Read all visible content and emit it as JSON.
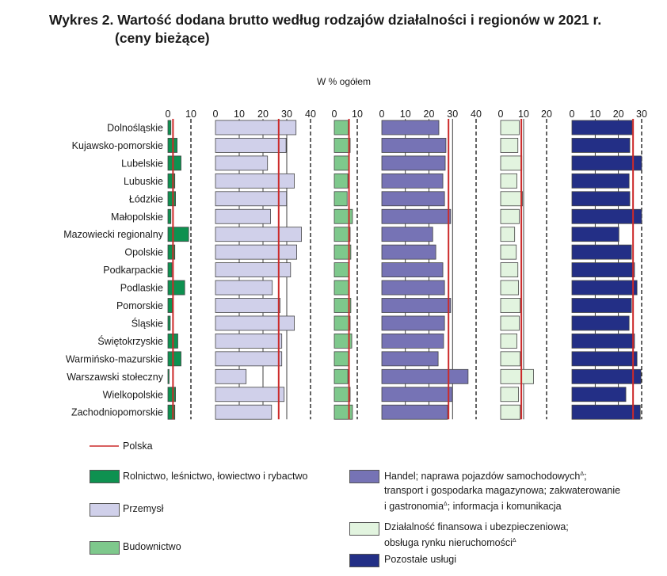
{
  "title": {
    "line1": "Wykres 2. Wartość dodana brutto według rodzajów działalności i regionów w 2021 r.",
    "line2": "(ceny bieżące)"
  },
  "unit_label": "W % ogółem",
  "chart_data": {
    "type": "bar",
    "orientation": "horizontal",
    "categories": [
      "Dolnośląskie",
      "Kujawsko-pomorskie",
      "Lubelskie",
      "Lubuskie",
      "Łódzkie",
      "Małopolskie",
      "Mazowiecki regionalny",
      "Opolskie",
      "Podkarpackie",
      "Podlaskie",
      "Pomorskie",
      "Śląskie",
      "Świętokrzyskie",
      "Warmińsko-mazurskie",
      "Warszawski stołeczny",
      "Wielkopolskie",
      "Zachodniopomorskie"
    ],
    "reference_name": "Polska",
    "reference_color": "#cc2a2a",
    "series": [
      {
        "name": "Rolnictwo, leśnictwo, łowiectwo i rybactwo",
        "color": "#0e9150",
        "values": [
          1.3,
          4.0,
          5.7,
          3.0,
          3.3,
          1.3,
          9.0,
          3.0,
          1.7,
          7.3,
          1.9,
          1.0,
          4.3,
          5.7,
          0.5,
          3.3,
          3.0
        ],
        "polska": 2.2,
        "xlim": [
          0,
          10
        ],
        "ticks": [
          "0",
          "10"
        ]
      },
      {
        "name": "Przemysł",
        "color": "#d0d0ea",
        "values": [
          33.9,
          29.7,
          21.9,
          33.2,
          29.9,
          23.2,
          36.2,
          34.2,
          31.6,
          23.9,
          27.2,
          33.2,
          27.9,
          27.9,
          12.9,
          28.9,
          23.6
        ],
        "polska": 26.6,
        "xlim": [
          0,
          40
        ],
        "ticks": [
          "0",
          "10",
          "20",
          "30",
          "40"
        ]
      },
      {
        "name": "Budownictwo",
        "color": "#7ec88c",
        "values": [
          6.1,
          6.9,
          6.4,
          5.9,
          5.6,
          7.9,
          6.9,
          7.2,
          6.4,
          6.4,
          7.2,
          6.9,
          7.6,
          6.2,
          5.9,
          6.9,
          7.9
        ],
        "polska": 6.4,
        "xlim": [
          0,
          10
        ],
        "ticks": [
          "0",
          "10"
        ]
      },
      {
        "name": "Handel; naprawa pojazdów samochodowych; transport i gospodarka magazynowa; zakwaterowanie i gastronomia; informacja i komunikacja",
        "color": "#7673b5",
        "values": [
          24.2,
          27.2,
          26.9,
          25.9,
          26.6,
          29.2,
          21.6,
          22.9,
          25.9,
          26.6,
          29.2,
          26.6,
          26.2,
          23.9,
          36.6,
          29.9,
          27.9
        ],
        "polska": 28.3,
        "xlim": [
          0,
          40
        ],
        "ticks": [
          "0",
          "10",
          "20",
          "30",
          "40"
        ]
      },
      {
        "name": "Działalność finansowa i ubezpieczeniowa; obsługa rynku nieruchomości",
        "color": "#e2f4df",
        "values": [
          8.1,
          7.5,
          9.2,
          7.1,
          9.5,
          8.1,
          6.1,
          6.8,
          7.5,
          7.8,
          8.5,
          8.1,
          7.1,
          8.5,
          14.3,
          7.8,
          8.5
        ],
        "polska": 9.0,
        "xlim": [
          0,
          20
        ],
        "ticks": [
          "0",
          "10",
          "20"
        ]
      },
      {
        "name": "Pozostałe usługi",
        "color": "#232f86",
        "values": [
          25.9,
          24.9,
          30.0,
          24.6,
          24.9,
          30.0,
          20.2,
          25.6,
          26.9,
          28.0,
          25.6,
          24.6,
          26.9,
          28.0,
          29.7,
          23.2,
          29.4
        ],
        "polska": 26.3,
        "xlim": [
          0,
          30
        ],
        "ticks": [
          "0",
          "10",
          "20",
          "30"
        ]
      }
    ]
  },
  "legend": {
    "polska": "Polska",
    "agri": "Rolnictwo, leśnictwo, łowiectwo i rybactwo",
    "industry": "Przemysł",
    "construction": "Budownictwo",
    "trade_l1": "Handel; naprawa pojazdów samochodowych",
    "trade_l2": "transport i gospodarka magazynowa; zakwaterowanie",
    "trade_l3a": "i gastronomia",
    "trade_l3b": "; informacja i komunikacja",
    "finance_l1": "Działalność finansowa i ubezpieczeniowa;",
    "finance_l2": "obsługa rynku nieruchomości",
    "other": "Pozostałe usługi",
    "footnote_mark": "Δ"
  }
}
